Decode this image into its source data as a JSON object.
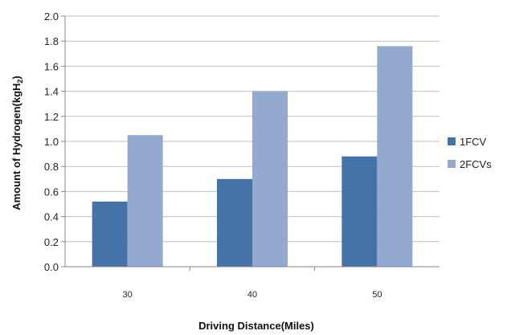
{
  "chart_data": {
    "type": "bar",
    "categories": [
      "30",
      "40",
      "50"
    ],
    "series": [
      {
        "name": "1FCV",
        "values": [
          0.52,
          0.7,
          0.88
        ],
        "color": "#4572a7"
      },
      {
        "name": "2FCVs",
        "values": [
          1.05,
          1.4,
          1.76
        ],
        "color": "#93a9d0"
      }
    ],
    "yticks": [
      "0.0",
      "0.2",
      "0.4",
      "0.6",
      "0.8",
      "1.0",
      "1.2",
      "1.4",
      "1.6",
      "1.8",
      "2.0"
    ],
    "ylim": [
      0,
      2.0
    ],
    "xlabel": "Driving Distance(Miles)",
    "ylabel_main": "Amount of Hydrogen(kgH",
    "ylabel_sub": "2",
    "ylabel_close": ")",
    "grid": true,
    "legend": "right",
    "gridline_color": "#bfbfbf",
    "axis_color": "#868686"
  }
}
